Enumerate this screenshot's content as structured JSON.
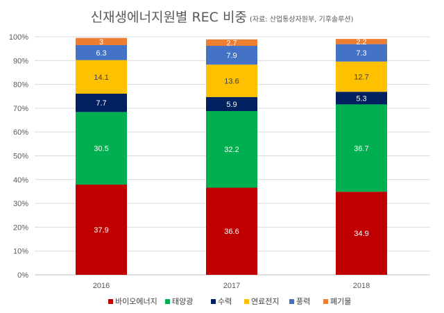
{
  "chart_data": {
    "type": "bar",
    "stacked": true,
    "title": "신재생에너지원별 REC 비중",
    "subtitle": "(자료: 산업통상자원부, 기후솔루션)",
    "categories": [
      "2016",
      "2017",
      "2018"
    ],
    "y_ticks": [
      "0%",
      "10%",
      "20%",
      "30%",
      "40%",
      "50%",
      "60%",
      "70%",
      "80%",
      "90%",
      "100%"
    ],
    "ylim": [
      0,
      100
    ],
    "legend_position": "bottom",
    "series": [
      {
        "name": "바이오에너지",
        "color": "#C00000",
        "values": [
          37.9,
          36.6,
          34.9
        ],
        "labels": [
          "37.9",
          "36.6",
          "34.9"
        ],
        "label_color": "#ffffff"
      },
      {
        "name": "태양광",
        "color": "#00B050",
        "values": [
          30.5,
          32.2,
          36.7
        ],
        "labels": [
          "30.5",
          "32.2",
          "36.7"
        ],
        "label_color": "#ffffff"
      },
      {
        "name": "수력",
        "color": "#002060",
        "values": [
          7.7,
          5.9,
          5.3
        ],
        "labels": [
          "7.7",
          "5.9",
          "5.3"
        ],
        "label_color": "#ffffff"
      },
      {
        "name": "연료전지",
        "color": "#FFC000",
        "values": [
          14.1,
          13.6,
          12.7
        ],
        "labels": [
          "14.1",
          "13.6",
          "12.7"
        ],
        "label_color": "#404040"
      },
      {
        "name": "풍력",
        "color": "#4472C4",
        "values": [
          6.3,
          7.9,
          7.3
        ],
        "labels": [
          "6.3",
          "7.9",
          "7.3"
        ],
        "label_color": "#ffffff"
      },
      {
        "name": "폐기물",
        "color": "#ED7D31",
        "values": [
          3.0,
          2.7,
          2.2
        ],
        "labels": [
          "3",
          "2.7",
          "2.2"
        ],
        "label_color": "#ffffff"
      }
    ]
  }
}
